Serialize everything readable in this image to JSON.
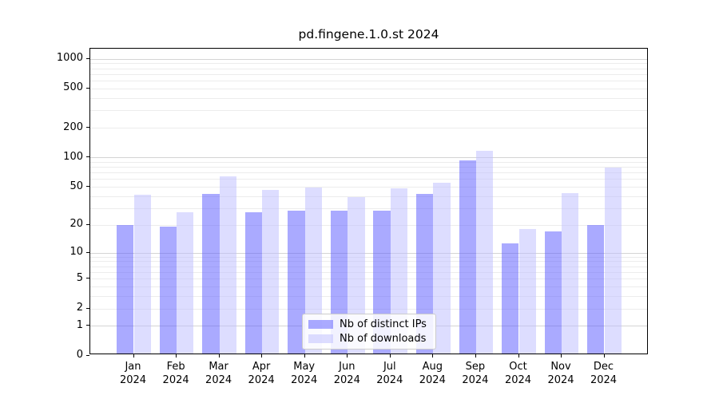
{
  "chart_data": {
    "type": "bar",
    "title": "pd.fingene.1.0.st 2024",
    "categories": [
      "Jan\n2024",
      "Feb\n2024",
      "Mar\n2024",
      "Apr\n2024",
      "May\n2024",
      "Jun\n2024",
      "Jul\n2024",
      "Aug\n2024",
      "Sep\n2024",
      "Oct\n2024",
      "Nov\n2024",
      "Dec\n2024"
    ],
    "series": [
      {
        "name": "Nb of distinct IPs",
        "color": "#aaaaff",
        "values": [
          19,
          18,
          40,
          26,
          27,
          27,
          27,
          40,
          89,
          12,
          16,
          19
        ]
      },
      {
        "name": "Nb of downloads",
        "color": "#ddddff",
        "values": [
          39,
          26,
          61,
          44,
          47,
          37,
          46,
          52,
          110,
          17,
          41,
          75
        ]
      }
    ],
    "ylabel": "",
    "xlabel": "",
    "yticks": [
      0,
      1,
      2,
      5,
      10,
      20,
      50,
      100,
      200,
      500,
      1000
    ],
    "ylim": [
      0,
      1260
    ],
    "yscale": "log10(value+1)",
    "grid": true,
    "legend_position": "inside lower-center"
  }
}
